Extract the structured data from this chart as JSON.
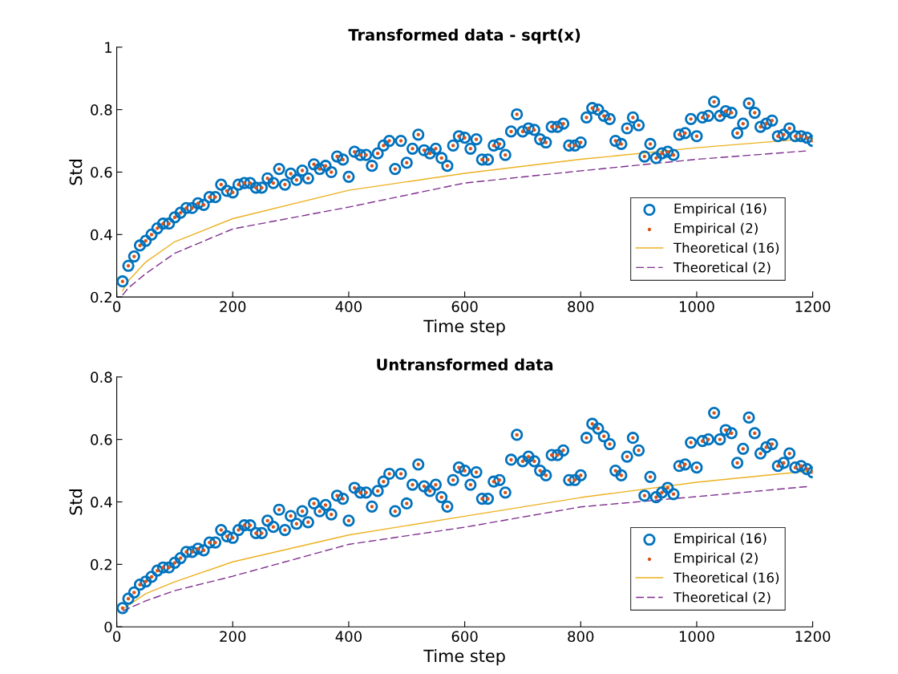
{
  "chart_data": [
    {
      "type": "scatter",
      "title": "Transformed data - sqrt(x)",
      "xlabel": "Time step",
      "ylabel": "Std",
      "xlim": [
        0,
        1200
      ],
      "xticks": [
        0,
        200,
        400,
        600,
        800,
        1000,
        1200
      ],
      "ylim": [
        0.2,
        1
      ],
      "yticks": [
        0.2,
        0.4,
        0.6,
        0.8,
        1
      ],
      "grid": false,
      "legend": "bottom right",
      "x": [
        10,
        20,
        30,
        40,
        50,
        60,
        70,
        80,
        90,
        100,
        110,
        120,
        130,
        140,
        150,
        160,
        170,
        180,
        190,
        200,
        210,
        220,
        230,
        240,
        250,
        260,
        270,
        280,
        290,
        300,
        310,
        320,
        330,
        340,
        350,
        360,
        370,
        380,
        390,
        400,
        410,
        420,
        430,
        440,
        450,
        460,
        470,
        480,
        490,
        500,
        510,
        520,
        530,
        540,
        550,
        560,
        570,
        580,
        590,
        600,
        610,
        620,
        630,
        640,
        650,
        660,
        670,
        680,
        690,
        700,
        710,
        720,
        730,
        740,
        750,
        760,
        770,
        780,
        790,
        800,
        810,
        820,
        830,
        840,
        850,
        860,
        870,
        880,
        890,
        900,
        910,
        920,
        930,
        940,
        950,
        960,
        970,
        980,
        990,
        1000,
        1010,
        1020,
        1030,
        1040,
        1050,
        1060,
        1070,
        1080,
        1090,
        1100,
        1110,
        1120,
        1130,
        1140,
        1150,
        1160,
        1170,
        1180,
        1190,
        1200
      ],
      "series": [
        {
          "name": "Empirical (16)",
          "type": "scatter",
          "marker": "circle",
          "color": "#0072bd",
          "values": [
            0.25,
            0.3,
            0.33,
            0.365,
            0.38,
            0.4,
            0.42,
            0.435,
            0.435,
            0.455,
            0.47,
            0.485,
            0.485,
            0.5,
            0.495,
            0.52,
            0.52,
            0.56,
            0.54,
            0.535,
            0.56,
            0.565,
            0.565,
            0.55,
            0.55,
            0.58,
            0.565,
            0.61,
            0.56,
            0.595,
            0.575,
            0.605,
            0.58,
            0.625,
            0.61,
            0.62,
            0.6,
            0.65,
            0.64,
            0.585,
            0.665,
            0.655,
            0.655,
            0.62,
            0.66,
            0.685,
            0.7,
            0.61,
            0.7,
            0.63,
            0.675,
            0.72,
            0.67,
            0.66,
            0.675,
            0.645,
            0.62,
            0.685,
            0.715,
            0.71,
            0.675,
            0.705,
            0.64,
            0.64,
            0.685,
            0.69,
            0.655,
            0.73,
            0.785,
            0.73,
            0.74,
            0.735,
            0.705,
            0.695,
            0.745,
            0.745,
            0.755,
            0.685,
            0.685,
            0.695,
            0.775,
            0.805,
            0.8,
            0.78,
            0.77,
            0.7,
            0.69,
            0.74,
            0.775,
            0.75,
            0.65,
            0.69,
            0.645,
            0.66,
            0.665,
            0.655,
            0.72,
            0.725,
            0.77,
            0.715,
            0.775,
            0.78,
            0.825,
            0.78,
            0.795,
            0.79,
            0.725,
            0.755,
            0.82,
            0.79,
            0.745,
            0.755,
            0.765,
            0.715,
            0.72,
            0.74,
            0.715,
            0.715,
            0.71,
            0.7
          ]
        },
        {
          "name": "Empirical (2)",
          "type": "scatter",
          "marker": "point",
          "color": "#d95319",
          "values": [
            0.25,
            0.3,
            0.33,
            0.365,
            0.38,
            0.4,
            0.42,
            0.435,
            0.435,
            0.455,
            0.47,
            0.485,
            0.485,
            0.5,
            0.495,
            0.52,
            0.52,
            0.56,
            0.54,
            0.535,
            0.56,
            0.565,
            0.565,
            0.55,
            0.55,
            0.58,
            0.565,
            0.61,
            0.56,
            0.595,
            0.575,
            0.605,
            0.58,
            0.625,
            0.61,
            0.62,
            0.6,
            0.65,
            0.64,
            0.585,
            0.665,
            0.655,
            0.655,
            0.62,
            0.66,
            0.685,
            0.7,
            0.61,
            0.7,
            0.63,
            0.675,
            0.72,
            0.67,
            0.66,
            0.675,
            0.645,
            0.62,
            0.685,
            0.715,
            0.71,
            0.675,
            0.705,
            0.64,
            0.64,
            0.685,
            0.69,
            0.655,
            0.73,
            0.785,
            0.73,
            0.74,
            0.735,
            0.705,
            0.695,
            0.745,
            0.745,
            0.755,
            0.685,
            0.685,
            0.695,
            0.775,
            0.805,
            0.8,
            0.78,
            0.77,
            0.7,
            0.69,
            0.74,
            0.775,
            0.75,
            0.65,
            0.69,
            0.645,
            0.66,
            0.665,
            0.655,
            0.72,
            0.725,
            0.77,
            0.715,
            0.775,
            0.78,
            0.825,
            0.78,
            0.795,
            0.79,
            0.725,
            0.755,
            0.82,
            0.79,
            0.745,
            0.755,
            0.765,
            0.715,
            0.72,
            0.74,
            0.715,
            0.715,
            0.71,
            0.7
          ]
        },
        {
          "name": "Theoretical (16)",
          "type": "line",
          "line_style": "solid",
          "color": "#edb120",
          "x": [
            10,
            20,
            50,
            100,
            200,
            400,
            600,
            800,
            1000,
            1200
          ],
          "values": [
            0.22,
            0.252,
            0.312,
            0.377,
            0.451,
            0.542,
            0.596,
            0.641,
            0.678,
            0.708
          ]
        },
        {
          "name": "Theoretical (2)",
          "type": "line",
          "line_style": "dashed",
          "color": "#7e2f8e",
          "x": [
            10,
            20,
            50,
            100,
            200,
            400,
            600,
            800,
            1000,
            1190
          ],
          "values": [
            0.206,
            0.229,
            0.275,
            0.34,
            0.418,
            0.488,
            0.565,
            0.604,
            0.641,
            0.668
          ]
        }
      ]
    },
    {
      "type": "scatter",
      "title": "Untransformed data",
      "xlabel": "Time step",
      "ylabel": "Std",
      "xlim": [
        0,
        1200
      ],
      "xticks": [
        0,
        200,
        400,
        600,
        800,
        1000,
        1200
      ],
      "ylim": [
        0,
        0.8
      ],
      "yticks": [
        0,
        0.2,
        0.4,
        0.6,
        0.8
      ],
      "grid": false,
      "legend": "bottom right",
      "x": [
        10,
        20,
        30,
        40,
        50,
        60,
        70,
        80,
        90,
        100,
        110,
        120,
        130,
        140,
        150,
        160,
        170,
        180,
        190,
        200,
        210,
        220,
        230,
        240,
        250,
        260,
        270,
        280,
        290,
        300,
        310,
        320,
        330,
        340,
        350,
        360,
        370,
        380,
        390,
        400,
        410,
        420,
        430,
        440,
        450,
        460,
        470,
        480,
        490,
        500,
        510,
        520,
        530,
        540,
        550,
        560,
        570,
        580,
        590,
        600,
        610,
        620,
        630,
        640,
        650,
        660,
        670,
        680,
        690,
        700,
        710,
        720,
        730,
        740,
        750,
        760,
        770,
        780,
        790,
        800,
        810,
        820,
        830,
        840,
        850,
        860,
        870,
        880,
        890,
        900,
        910,
        920,
        930,
        940,
        950,
        960,
        970,
        980,
        990,
        1000,
        1010,
        1020,
        1030,
        1040,
        1050,
        1060,
        1070,
        1080,
        1090,
        1100,
        1110,
        1120,
        1130,
        1140,
        1150,
        1160,
        1170,
        1180,
        1190,
        1200
      ],
      "series": [
        {
          "name": "Empirical (16)",
          "type": "scatter",
          "marker": "circle",
          "color": "#0072bd",
          "values": [
            0.06,
            0.09,
            0.11,
            0.135,
            0.145,
            0.16,
            0.18,
            0.19,
            0.19,
            0.205,
            0.22,
            0.24,
            0.24,
            0.25,
            0.245,
            0.27,
            0.27,
            0.31,
            0.29,
            0.285,
            0.31,
            0.325,
            0.325,
            0.3,
            0.3,
            0.34,
            0.32,
            0.375,
            0.31,
            0.355,
            0.33,
            0.37,
            0.335,
            0.395,
            0.37,
            0.39,
            0.36,
            0.42,
            0.41,
            0.34,
            0.445,
            0.43,
            0.43,
            0.385,
            0.435,
            0.465,
            0.49,
            0.37,
            0.49,
            0.395,
            0.455,
            0.52,
            0.45,
            0.435,
            0.455,
            0.415,
            0.385,
            0.47,
            0.51,
            0.5,
            0.455,
            0.495,
            0.41,
            0.41,
            0.465,
            0.47,
            0.43,
            0.535,
            0.615,
            0.53,
            0.545,
            0.53,
            0.5,
            0.485,
            0.55,
            0.55,
            0.565,
            0.47,
            0.47,
            0.485,
            0.605,
            0.65,
            0.635,
            0.61,
            0.585,
            0.5,
            0.485,
            0.545,
            0.605,
            0.565,
            0.42,
            0.48,
            0.415,
            0.43,
            0.445,
            0.425,
            0.515,
            0.52,
            0.59,
            0.51,
            0.595,
            0.6,
            0.685,
            0.6,
            0.63,
            0.62,
            0.525,
            0.57,
            0.67,
            0.62,
            0.555,
            0.575,
            0.585,
            0.515,
            0.525,
            0.555,
            0.51,
            0.515,
            0.505,
            0.495
          ]
        },
        {
          "name": "Empirical (2)",
          "type": "scatter",
          "marker": "point",
          "color": "#d95319",
          "values": [
            0.06,
            0.09,
            0.11,
            0.135,
            0.145,
            0.16,
            0.18,
            0.19,
            0.19,
            0.205,
            0.22,
            0.24,
            0.24,
            0.25,
            0.245,
            0.27,
            0.27,
            0.31,
            0.29,
            0.285,
            0.31,
            0.325,
            0.325,
            0.3,
            0.3,
            0.34,
            0.32,
            0.375,
            0.31,
            0.355,
            0.33,
            0.37,
            0.335,
            0.395,
            0.37,
            0.39,
            0.36,
            0.42,
            0.41,
            0.34,
            0.445,
            0.43,
            0.43,
            0.385,
            0.435,
            0.465,
            0.49,
            0.37,
            0.49,
            0.395,
            0.455,
            0.52,
            0.45,
            0.435,
            0.455,
            0.415,
            0.385,
            0.47,
            0.51,
            0.5,
            0.455,
            0.495,
            0.41,
            0.41,
            0.465,
            0.47,
            0.43,
            0.535,
            0.615,
            0.53,
            0.545,
            0.53,
            0.5,
            0.485,
            0.55,
            0.55,
            0.565,
            0.47,
            0.47,
            0.485,
            0.605,
            0.65,
            0.635,
            0.61,
            0.585,
            0.5,
            0.485,
            0.545,
            0.605,
            0.565,
            0.42,
            0.48,
            0.415,
            0.43,
            0.445,
            0.425,
            0.515,
            0.52,
            0.59,
            0.51,
            0.595,
            0.6,
            0.685,
            0.6,
            0.63,
            0.62,
            0.525,
            0.57,
            0.67,
            0.62,
            0.555,
            0.575,
            0.585,
            0.515,
            0.525,
            0.555,
            0.51,
            0.515,
            0.505,
            0.495
          ]
        },
        {
          "name": "Theoretical (16)",
          "type": "line",
          "line_style": "solid",
          "color": "#edb120",
          "x": [
            10,
            50,
            100,
            200,
            400,
            600,
            800,
            1000,
            1200
          ],
          "values": [
            0.056,
            0.106,
            0.144,
            0.208,
            0.294,
            0.354,
            0.414,
            0.463,
            0.5
          ]
        },
        {
          "name": "Theoretical (2)",
          "type": "line",
          "line_style": "dashed",
          "color": "#7e2f8e",
          "x": [
            10,
            50,
            100,
            200,
            400,
            600,
            800,
            1000,
            1190
          ],
          "values": [
            0.051,
            0.083,
            0.116,
            0.162,
            0.264,
            0.319,
            0.384,
            0.417,
            0.449
          ]
        }
      ]
    }
  ]
}
